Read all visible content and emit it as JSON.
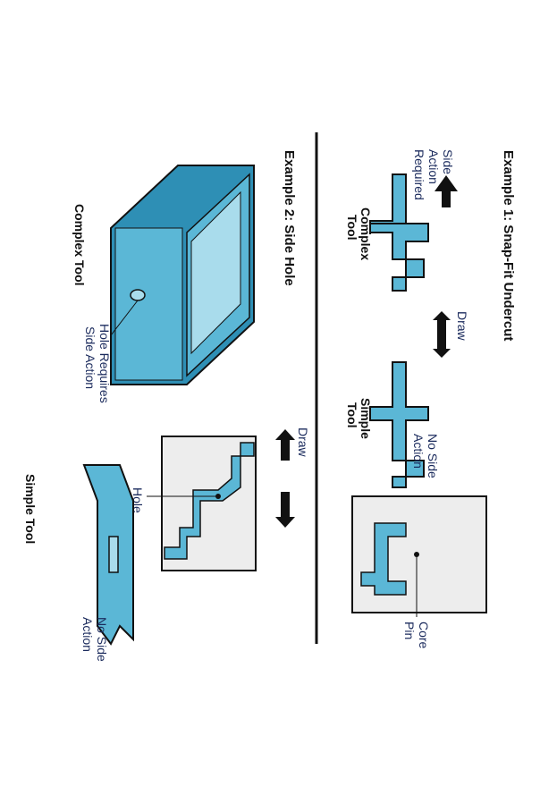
{
  "example1": {
    "title": "Example 1: Snap-Fit Undercut",
    "side_action": [
      "Side",
      "Action",
      "Required"
    ],
    "complex_tool": [
      "Complex",
      "Tool"
    ],
    "draw": "Draw",
    "simple_tool": [
      "Simple",
      "Tool"
    ],
    "no_side_action": [
      "No Side",
      "Action"
    ],
    "core_pin": [
      "Core",
      "Pin"
    ]
  },
  "example2": {
    "title": "Example 2: Side Hole",
    "hole_requires": [
      "Hole Requires",
      "Side Action"
    ],
    "complex_tool": "Complex Tool",
    "draw": "Draw",
    "hole": "Hole",
    "simple_tool": "Simple Tool",
    "no_side_action": [
      "No Side",
      "Action"
    ]
  },
  "colors": {
    "part_blue": "#5bb7d6",
    "part_dark": "#2e8fb5",
    "part_light": "#a9dcec",
    "mold_grey": "#ededed",
    "outline": "#111111"
  },
  "icons": [
    "arrow-up-icon",
    "double-arrow-icon"
  ]
}
